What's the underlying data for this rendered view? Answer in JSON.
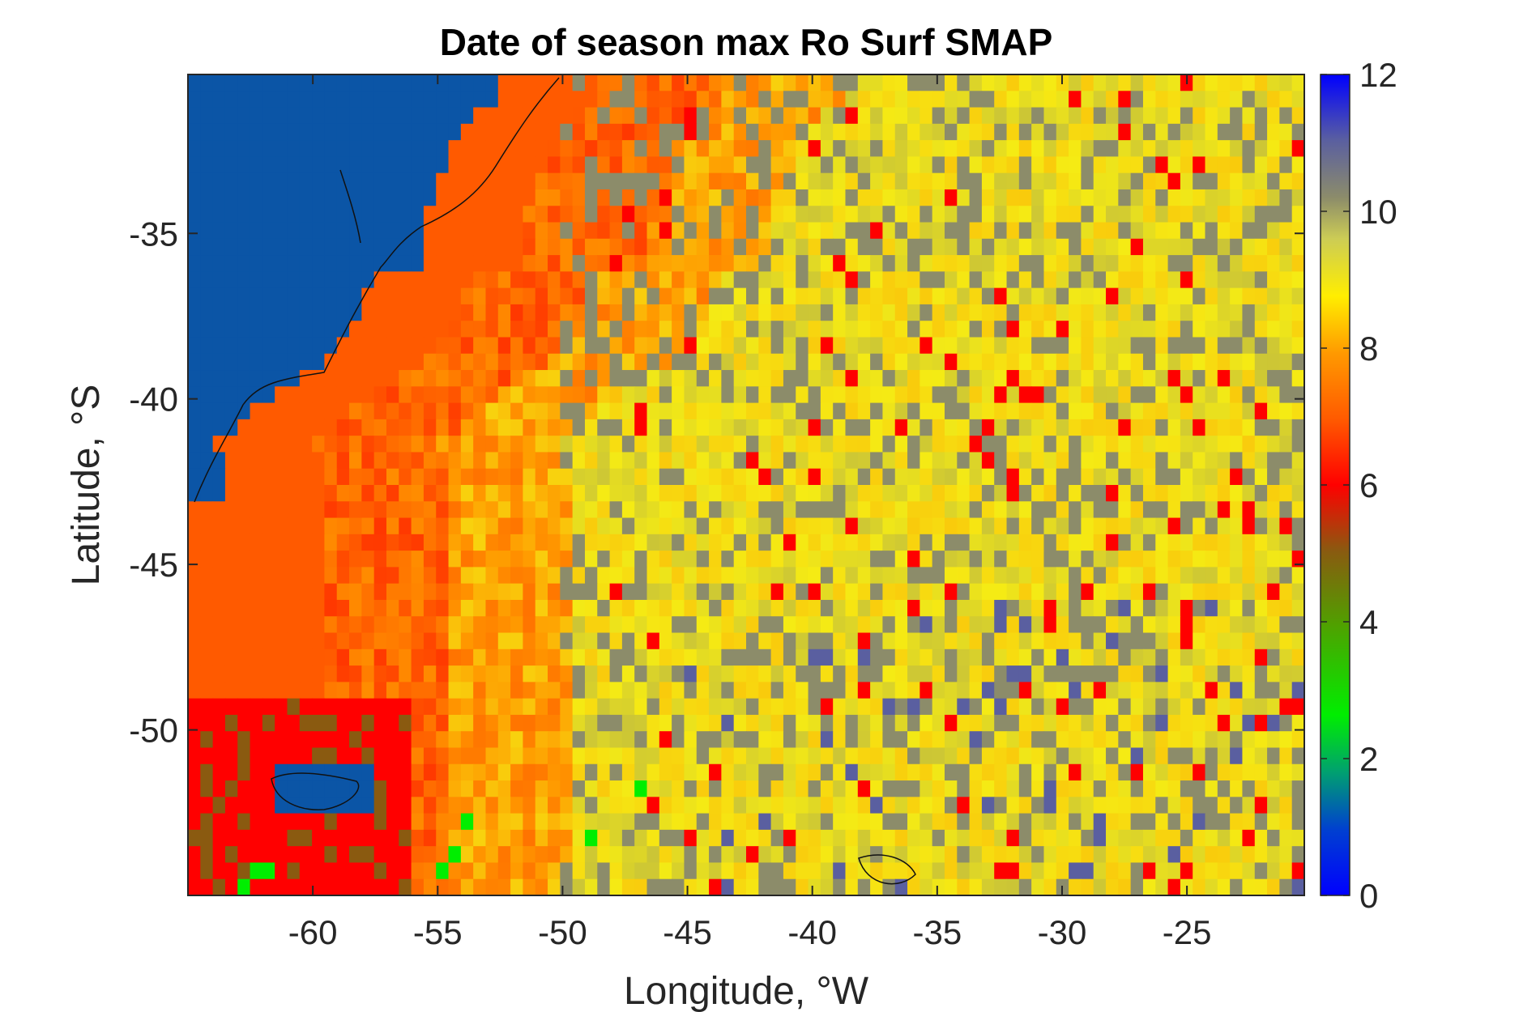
{
  "chart_data": {
    "type": "heatmap",
    "title": "Date of season max Ro Surf SMAP",
    "xlabel": "Longitude, °W",
    "ylabel": "Latitude, °S",
    "xlim": [
      -65,
      -20.3
    ],
    "ylim": [
      -55,
      -30.2
    ],
    "xticks": [
      -60,
      -55,
      -50,
      -45,
      -40,
      -35,
      -30,
      -25
    ],
    "xtick_labels": [
      "-60",
      "-55",
      "-50",
      "-45",
      "-40",
      "-35",
      "-30",
      "-25"
    ],
    "yticks": [
      -35,
      -40,
      -45,
      -50
    ],
    "ytick_labels": [
      "-35",
      "-40",
      "-45",
      "-50"
    ],
    "colorbar": {
      "range": [
        0,
        12
      ],
      "ticks": [
        0,
        2,
        4,
        6,
        8,
        10,
        12
      ],
      "tick_labels": [
        "0",
        "2",
        "4",
        "6",
        "8",
        "10",
        "12"
      ],
      "colormap": "jet-like: blue-green-olive-red-orange-yellow-gray-slate-blue",
      "land_color": "#0b55a6"
    },
    "grid_resolution_deg": 0.25,
    "regions": [
      {
        "area": "South American continent / Uruguay (land)",
        "lon": [
          -65,
          -56
        ],
        "lat": [
          -41,
          -30.2
        ],
        "value": "land"
      },
      {
        "area": "Falkland Islands (land)",
        "lon": [
          -61.5,
          -57.5
        ],
        "lat": [
          -52.5,
          -51
        ],
        "value": "land"
      },
      {
        "area": "Western shelf band",
        "lon": [
          -63,
          -52
        ],
        "lat": [
          -50,
          -31
        ],
        "value": 7
      },
      {
        "area": "Interior red patches near shelf",
        "lon": [
          -60,
          -53
        ],
        "lat": [
          -48,
          -38
        ],
        "value": 6
      },
      {
        "area": "Southwest corner",
        "lon": [
          -65,
          -57
        ],
        "lat": [
          -55,
          -49
        ],
        "value": 6
      },
      {
        "area": "Brown patch south of Falklands",
        "lon": [
          -59,
          -55
        ],
        "lat": [
          -55,
          -51
        ],
        "value": 5
      },
      {
        "area": "Central Atlantic",
        "lon": [
          -45,
          -26
        ],
        "lat": [
          -52,
          -36
        ],
        "value": 9
      },
      {
        "area": "Gray patches",
        "lon": [
          -50,
          -30
        ],
        "lat": [
          -48,
          -34
        ],
        "value": 10
      },
      {
        "area": "Eastern open ocean",
        "lon": [
          -35,
          -20.3
        ],
        "lat": [
          -55,
          -30.2
        ],
        "value": 9
      },
      {
        "area": "Scattered slate/blue patches",
        "lon": [
          -45,
          -22
        ],
        "lat": [
          -55,
          -40
        ],
        "value": 11
      },
      {
        "area": "Blue cells near -24W",
        "lon": [
          -25,
          -22
        ],
        "lat": [
          -51,
          -50
        ],
        "value": 12
      },
      {
        "area": "Green cells",
        "lon": [
          -23,
          -21
        ],
        "lat": [
          -51.5,
          -50.5
        ],
        "value": 3
      }
    ]
  }
}
